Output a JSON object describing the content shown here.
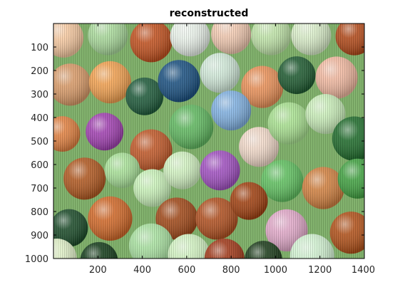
{
  "chart_data": {
    "type": "heatmap",
    "title": "reconstructed",
    "xlabel": "",
    "ylabel": "",
    "xlim": [
      0,
      1400
    ],
    "ylim": [
      0,
      1000
    ],
    "y_reversed": true,
    "grid": false,
    "x_ticks": [
      200,
      400,
      600,
      800,
      1000,
      1200,
      1400
    ],
    "x_tick_labels": [
      "200",
      "400",
      "600",
      "800",
      "1000",
      "1200",
      "1400"
    ],
    "y_ticks": [
      100,
      200,
      300,
      400,
      500,
      600,
      700,
      800,
      900,
      1000
    ],
    "y_tick_labels": [
      "100",
      "200",
      "300",
      "400",
      "500",
      "600",
      "700",
      "800",
      "900",
      "1000"
    ],
    "colors": {
      "background": "#7fb06a",
      "axes_frame": "#000000"
    },
    "marbles": [
      {
        "x": 45,
        "y": 60,
        "r": 90,
        "color": "#f5c8a0"
      },
      {
        "x": 245,
        "y": 50,
        "r": 90,
        "color": "#a8d89a"
      },
      {
        "x": 440,
        "y": 75,
        "r": 95,
        "color": "#c0501e"
      },
      {
        "x": 615,
        "y": 55,
        "r": 90,
        "color": "#e8f0e8"
      },
      {
        "x": 800,
        "y": 45,
        "r": 90,
        "color": "#f0c8b0"
      },
      {
        "x": 980,
        "y": 50,
        "r": 90,
        "color": "#bfe3a8"
      },
      {
        "x": 1160,
        "y": 50,
        "r": 90,
        "color": "#d8ecc8"
      },
      {
        "x": 1355,
        "y": 55,
        "r": 85,
        "color": "#b04818"
      },
      {
        "x": 75,
        "y": 260,
        "r": 95,
        "color": "#d89a68"
      },
      {
        "x": 255,
        "y": 250,
        "r": 95,
        "color": "#f0a050"
      },
      {
        "x": 410,
        "y": 310,
        "r": 85,
        "color": "#1e5a3a"
      },
      {
        "x": 565,
        "y": 245,
        "r": 95,
        "color": "#1a5080"
      },
      {
        "x": 750,
        "y": 210,
        "r": 90,
        "color": "#d0e8d8"
      },
      {
        "x": 940,
        "y": 270,
        "r": 95,
        "color": "#e89058"
      },
      {
        "x": 1095,
        "y": 220,
        "r": 85,
        "color": "#1e5a30"
      },
      {
        "x": 1275,
        "y": 230,
        "r": 95,
        "color": "#f0b8a0"
      },
      {
        "x": 40,
        "y": 470,
        "r": 80,
        "color": "#e08040"
      },
      {
        "x": 230,
        "y": 460,
        "r": 85,
        "color": "#a040b0"
      },
      {
        "x": 440,
        "y": 540,
        "r": 95,
        "color": "#c05828"
      },
      {
        "x": 620,
        "y": 440,
        "r": 100,
        "color": "#60b860"
      },
      {
        "x": 800,
        "y": 370,
        "r": 90,
        "color": "#80b0e0"
      },
      {
        "x": 925,
        "y": 525,
        "r": 90,
        "color": "#f0d8c8"
      },
      {
        "x": 1060,
        "y": 425,
        "r": 95,
        "color": "#a8e090"
      },
      {
        "x": 1225,
        "y": 385,
        "r": 90,
        "color": "#c8ecb8"
      },
      {
        "x": 1355,
        "y": 490,
        "r": 100,
        "color": "#1e6a2a"
      },
      {
        "x": 140,
        "y": 660,
        "r": 95,
        "color": "#b05820"
      },
      {
        "x": 310,
        "y": 625,
        "r": 80,
        "color": "#a8e098"
      },
      {
        "x": 445,
        "y": 700,
        "r": 85,
        "color": "#c8f0b8"
      },
      {
        "x": 580,
        "y": 625,
        "r": 85,
        "color": "#d0f0c0"
      },
      {
        "x": 750,
        "y": 625,
        "r": 90,
        "color": "#a050c0"
      },
      {
        "x": 1030,
        "y": 670,
        "r": 95,
        "color": "#60c060"
      },
      {
        "x": 1215,
        "y": 700,
        "r": 95,
        "color": "#d08040"
      },
      {
        "x": 1370,
        "y": 660,
        "r": 90,
        "color": "#40a040"
      },
      {
        "x": 70,
        "y": 870,
        "r": 85,
        "color": "#1a4a28"
      },
      {
        "x": 255,
        "y": 830,
        "r": 100,
        "color": "#d06828"
      },
      {
        "x": 555,
        "y": 830,
        "r": 95,
        "color": "#a04818"
      },
      {
        "x": 735,
        "y": 830,
        "r": 95,
        "color": "#b05020"
      },
      {
        "x": 880,
        "y": 755,
        "r": 85,
        "color": "#a04010"
      },
      {
        "x": 1050,
        "y": 880,
        "r": 95,
        "color": "#e0a8c8"
      },
      {
        "x": 1340,
        "y": 890,
        "r": 95,
        "color": "#b05018"
      },
      {
        "x": 15,
        "y": 1000,
        "r": 90,
        "color": "#e0f0c8"
      },
      {
        "x": 205,
        "y": 1010,
        "r": 85,
        "color": "#123a18"
      },
      {
        "x": 440,
        "y": 945,
        "r": 100,
        "color": "#a8e0a0"
      },
      {
        "x": 610,
        "y": 985,
        "r": 95,
        "color": "#d0f0c0"
      },
      {
        "x": 770,
        "y": 1000,
        "r": 90,
        "color": "#a03818"
      },
      {
        "x": 945,
        "y": 1005,
        "r": 85,
        "color": "#1a3a18"
      },
      {
        "x": 1165,
        "y": 990,
        "r": 100,
        "color": "#d0f0d0"
      }
    ]
  }
}
